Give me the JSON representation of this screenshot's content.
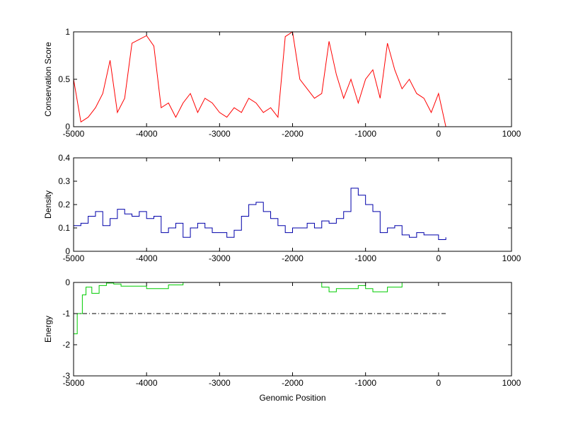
{
  "chart_data": [
    {
      "type": "line",
      "ylabel": "Conservation Score",
      "xlim": [
        -5000,
        1000
      ],
      "xticks": [
        -5000,
        -4000,
        -3000,
        -2000,
        -1000,
        0,
        1000
      ],
      "ylim": [
        0,
        1
      ],
      "yticks": [
        0,
        0.5,
        1
      ],
      "step": false,
      "series": [
        {
          "color": "#ff0000",
          "x": [
            -5000,
            -4900,
            -4800,
            -4700,
            -4600,
            -4500,
            -4400,
            -4300,
            -4200,
            -4100,
            -4000,
            -3900,
            -3800,
            -3700,
            -3600,
            -3500,
            -3400,
            -3300,
            -3200,
            -3100,
            -3000,
            -2900,
            -2800,
            -2700,
            -2600,
            -2500,
            -2400,
            -2300,
            -2200,
            -2100,
            -2000,
            -1900,
            -1800,
            -1700,
            -1600,
            -1500,
            -1400,
            -1300,
            -1200,
            -1100,
            -1000,
            -900,
            -800,
            -700,
            -600,
            -500,
            -400,
            -300,
            -200,
            -100,
            0,
            100
          ],
          "values": [
            0.5,
            0.05,
            0.1,
            0.2,
            0.35,
            0.7,
            0.15,
            0.3,
            0.88,
            0.92,
            0.96,
            0.85,
            0.2,
            0.25,
            0.1,
            0.25,
            0.35,
            0.15,
            0.3,
            0.25,
            0.15,
            0.1,
            0.2,
            0.15,
            0.3,
            0.25,
            0.15,
            0.2,
            0.1,
            0.95,
            1,
            0.5,
            0.4,
            0.3,
            0.35,
            0.9,
            0.55,
            0.3,
            0.5,
            0.25,
            0.5,
            0.6,
            0.3,
            0.88,
            0.6,
            0.4,
            0.5,
            0.35,
            0.3,
            0.15,
            0.35,
            0
          ]
        }
      ]
    },
    {
      "type": "line",
      "ylabel": "Density",
      "xlim": [
        -5000,
        1000
      ],
      "xticks": [
        -5000,
        -4000,
        -3000,
        -2000,
        -1000,
        0,
        1000
      ],
      "ylim": [
        0,
        0.4
      ],
      "yticks": [
        0,
        0.1,
        0.2,
        0.3,
        0.4
      ],
      "step": true,
      "series": [
        {
          "color": "#0000aa",
          "x": [
            -5000,
            -4900,
            -4800,
            -4700,
            -4600,
            -4500,
            -4400,
            -4300,
            -4200,
            -4100,
            -4000,
            -3900,
            -3800,
            -3700,
            -3600,
            -3500,
            -3400,
            -3300,
            -3200,
            -3100,
            -3000,
            -2900,
            -2800,
            -2700,
            -2600,
            -2500,
            -2400,
            -2300,
            -2200,
            -2100,
            -2000,
            -1900,
            -1800,
            -1700,
            -1600,
            -1500,
            -1400,
            -1300,
            -1200,
            -1100,
            -1000,
            -900,
            -800,
            -700,
            -600,
            -500,
            -400,
            -300,
            -200,
            -100,
            0,
            100
          ],
          "values": [
            0.11,
            0.12,
            0.15,
            0.17,
            0.11,
            0.14,
            0.18,
            0.16,
            0.15,
            0.17,
            0.14,
            0.15,
            0.08,
            0.1,
            0.12,
            0.06,
            0.1,
            0.12,
            0.1,
            0.08,
            0.08,
            0.06,
            0.09,
            0.15,
            0.2,
            0.21,
            0.17,
            0.14,
            0.11,
            0.08,
            0.1,
            0.1,
            0.12,
            0.1,
            0.13,
            0.12,
            0.14,
            0.17,
            0.27,
            0.24,
            0.2,
            0.17,
            0.08,
            0.1,
            0.11,
            0.07,
            0.06,
            0.08,
            0.07,
            0.07,
            0.05,
            0.06
          ]
        }
      ]
    },
    {
      "type": "line",
      "ylabel": "Energy",
      "xlabel": "Genomic Position",
      "xlim": [
        -5000,
        1000
      ],
      "xticks": [
        -5000,
        -4000,
        -3000,
        -2000,
        -1000,
        0,
        1000
      ],
      "ylim": [
        -3,
        0
      ],
      "yticks": [
        -3,
        -2,
        -1,
        0
      ],
      "step": true,
      "series": [
        {
          "color": "#00cc00",
          "x": [
            -5000,
            -4950,
            -4880,
            -4830,
            -4750,
            -4650,
            -4550,
            -4450,
            -4350,
            -4000,
            -3700,
            -3500,
            -1600,
            -1500,
            -1400,
            -1100,
            -1000,
            -900,
            -700,
            -500
          ],
          "values": [
            -1.65,
            -1,
            -0.4,
            -0.15,
            -0.35,
            -0.1,
            -0.02,
            -0.05,
            -0.12,
            -0.2,
            -0.08,
            0,
            -0.15,
            -0.3,
            -0.2,
            -0.1,
            -0.2,
            -0.3,
            -0.15,
            0
          ]
        },
        {
          "color": "#000000",
          "dash": "dashdot",
          "x": [
            -5000,
            100
          ],
          "values": [
            -1,
            -1
          ]
        }
      ]
    }
  ]
}
